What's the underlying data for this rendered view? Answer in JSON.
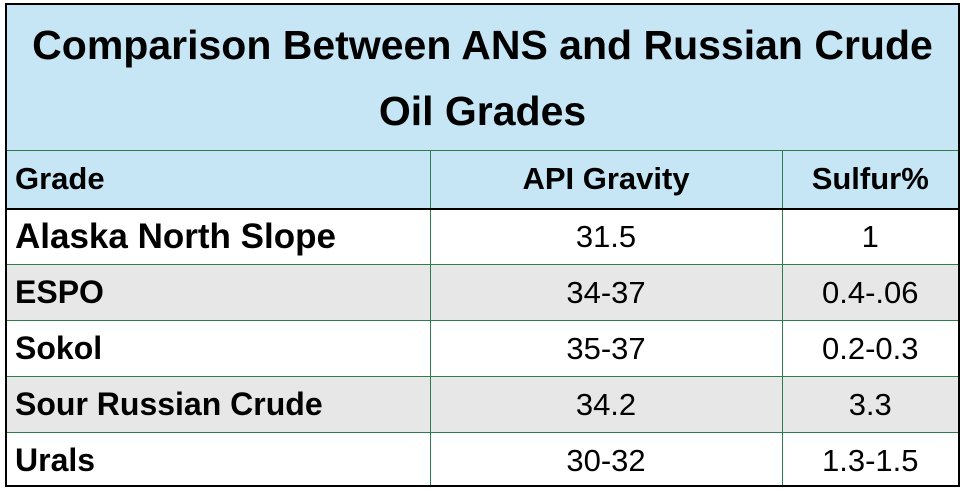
{
  "chart_data": {
    "type": "table",
    "title": "Comparison Between ANS and Russian Crude Oil Grades",
    "columns": [
      "Grade",
      "API Gravity",
      "Sulfur%"
    ],
    "rows": [
      [
        "Alaska North Slope",
        "31.5",
        "1"
      ],
      [
        "ESPO",
        "34-37",
        "0.4-.06"
      ],
      [
        "Sokol",
        "35-37",
        "0.2-0.3"
      ],
      [
        "Sour Russian Crude",
        "34.2",
        "3.3"
      ],
      [
        "Urals",
        "30-32",
        "1.3-1.5"
      ]
    ]
  },
  "colors": {
    "header_fill": "#c6e6f5",
    "band_fill": "#e7e7e7",
    "grid_line": "#2e7d4f"
  }
}
